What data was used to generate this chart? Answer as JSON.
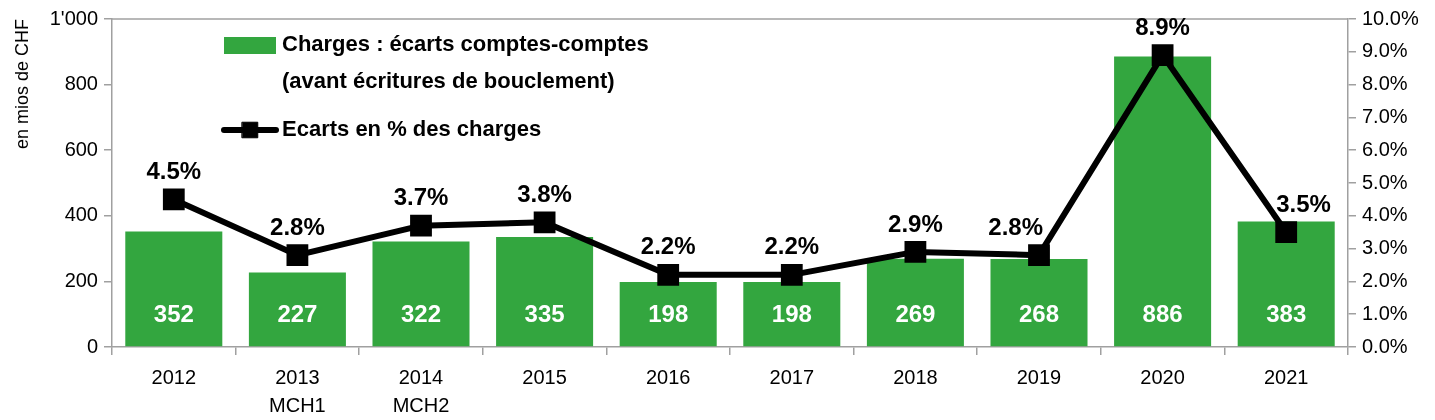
{
  "chart_data": {
    "type": "bar",
    "categories": [
      "2012",
      "2013\nMCH1",
      "2014\nMCH2",
      "2015",
      "2016",
      "2017",
      "2018",
      "2019",
      "2020",
      "2021"
    ],
    "series": [
      {
        "name": "Charges : écarts comptes-comptes\n(avant écritures de bouclement)",
        "color": "#33a63f",
        "values": [
          352,
          227,
          322,
          335,
          198,
          198,
          269,
          268,
          886,
          383
        ],
        "value_labels": [
          "352",
          "227",
          "322",
          "335",
          "198",
          "198",
          "269",
          "268",
          "886",
          "383"
        ]
      },
      {
        "name": "Ecarts en % des charges",
        "type": "line",
        "axis": "y2",
        "color": "#000000",
        "values": [
          4.5,
          2.8,
          3.7,
          3.8,
          2.2,
          2.2,
          2.9,
          2.8,
          8.9,
          3.5
        ],
        "value_labels": [
          "4.5%",
          "2.8%",
          "3.7%",
          "3.8%",
          "2.2%",
          "2.2%",
          "2.9%",
          "2.8%",
          "8.9%",
          "3.5%"
        ]
      }
    ],
    "ylabel": "en mios de CHF",
    "ylim": [
      0,
      1000
    ],
    "yticks": [
      0,
      200,
      400,
      600,
      800,
      {
        "value": 1000,
        "label": "1'000"
      }
    ],
    "y2lim": [
      0,
      10
    ],
    "y2ticks": [
      {
        "value": 0,
        "label": "0.0%"
      },
      {
        "value": 1,
        "label": "1.0%"
      },
      {
        "value": 2,
        "label": "2.0%"
      },
      {
        "value": 3,
        "label": "3.0%"
      },
      {
        "value": 4,
        "label": "4.0%"
      },
      {
        "value": 5,
        "label": "5.0%"
      },
      {
        "value": 6,
        "label": "6.0%"
      },
      {
        "value": 7,
        "label": "7.0%"
      },
      {
        "value": 8,
        "label": "8.0%"
      },
      {
        "value": 9,
        "label": "9.0%"
      },
      {
        "value": 10,
        "label": "10.0%"
      }
    ],
    "marker": "square",
    "legend": "top left",
    "grid": false
  }
}
